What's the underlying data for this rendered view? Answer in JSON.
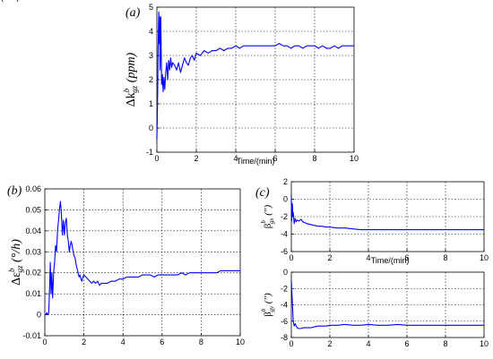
{
  "chart_data": [
    {
      "type": "line",
      "panel": "(a)",
      "ylabel_main": "Δk",
      "ylabel_sub": "gz",
      "ylabel_sup": "b",
      "ylabel_unit": " (ppm)",
      "xlabel": "Time/(min)",
      "xlim": [
        0,
        10
      ],
      "ylim": [
        -1,
        5
      ],
      "xticks": [
        "0",
        "2",
        "4",
        "6",
        "8",
        "10"
      ],
      "yticks": [
        "-1",
        "0",
        "1",
        "2",
        "3",
        "4",
        "5"
      ],
      "grid": true,
      "series": [
        {
          "color": "#0000ff",
          "x": [
            0,
            0.02,
            0.04,
            0.06,
            0.08,
            0.1,
            0.12,
            0.14,
            0.16,
            0.18,
            0.2,
            0.24,
            0.28,
            0.32,
            0.36,
            0.4,
            0.45,
            0.5,
            0.55,
            0.6,
            0.65,
            0.7,
            0.75,
            0.8,
            0.9,
            1.0,
            1.1,
            1.2,
            1.3,
            1.4,
            1.5,
            1.6,
            1.7,
            1.8,
            1.9,
            2.0,
            2.2,
            2.4,
            2.6,
            2.8,
            3.0,
            3.2,
            3.4,
            3.6,
            3.8,
            4.0,
            4.2,
            4.4,
            4.6,
            4.8,
            5.0,
            5.2,
            5.4,
            5.6,
            5.8,
            6.0,
            6.2,
            6.4,
            6.6,
            6.8,
            7.0,
            7.2,
            7.4,
            7.6,
            7.8,
            8.0,
            8.2,
            8.4,
            8.6,
            8.8,
            9.0,
            9.2,
            9.4,
            9.6,
            9.8,
            10.0
          ],
          "y": [
            -0.5,
            0.3,
            1.5,
            3.0,
            4.2,
            4.8,
            3.5,
            4.6,
            2.4,
            3.2,
            4.6,
            1.8,
            2.2,
            1.5,
            2.1,
            1.6,
            2.3,
            2.7,
            2.0,
            2.8,
            2.4,
            2.9,
            2.5,
            2.7,
            2.6,
            2.4,
            2.7,
            2.3,
            2.6,
            2.9,
            2.7,
            2.6,
            2.9,
            3.0,
            2.8,
            3.1,
            3.0,
            3.2,
            3.1,
            3.2,
            3.2,
            3.3,
            3.2,
            3.3,
            3.3,
            3.4,
            3.3,
            3.4,
            3.4,
            3.4,
            3.4,
            3.4,
            3.4,
            3.4,
            3.4,
            3.4,
            3.5,
            3.4,
            3.4,
            3.3,
            3.4,
            3.4,
            3.3,
            3.4,
            3.4,
            3.4,
            3.3,
            3.4,
            3.3,
            3.3,
            3.4,
            3.3,
            3.4,
            3.4,
            3.4,
            3.4
          ]
        }
      ]
    },
    {
      "type": "line",
      "panel": "(b)",
      "ylabel_main": "Δε",
      "ylabel_sub": "gz",
      "ylabel_sup": "b",
      "ylabel_unit": " (°/h)",
      "xlabel": "",
      "xlim": [
        0,
        10
      ],
      "ylim": [
        -0.01,
        0.06
      ],
      "xticks": [
        "0",
        "2",
        "4",
        "6",
        "8",
        "10"
      ],
      "yticks": [
        "-0.01",
        "0",
        "0.01",
        "0.02",
        "0.03",
        "0.04",
        "0.05",
        "0.06"
      ],
      "grid": true,
      "series": [
        {
          "color": "#0000ff",
          "x": [
            0,
            0.05,
            0.1,
            0.15,
            0.2,
            0.25,
            0.28,
            0.32,
            0.36,
            0.4,
            0.45,
            0.5,
            0.55,
            0.6,
            0.65,
            0.7,
            0.75,
            0.8,
            0.85,
            0.9,
            0.95,
            1.0,
            1.05,
            1.1,
            1.15,
            1.2,
            1.25,
            1.3,
            1.35,
            1.4,
            1.45,
            1.5,
            1.55,
            1.6,
            1.65,
            1.7,
            1.75,
            1.8,
            1.85,
            1.9,
            1.95,
            2.0,
            2.1,
            2.2,
            2.3,
            2.4,
            2.5,
            2.6,
            2.7,
            2.8,
            2.9,
            3.0,
            3.2,
            3.4,
            3.6,
            3.8,
            4.0,
            4.2,
            4.4,
            4.6,
            4.8,
            5.0,
            5.2,
            5.4,
            5.6,
            5.8,
            6.0,
            6.2,
            6.4,
            6.6,
            6.8,
            7.0,
            7.2,
            7.4,
            7.6,
            7.8,
            8.0,
            8.2,
            8.4,
            8.6,
            8.8,
            9.0,
            9.2,
            9.4,
            9.6,
            9.8,
            10.0
          ],
          "y": [
            0,
            0,
            0.001,
            0,
            0.001,
            0.015,
            0.025,
            0.01,
            0.02,
            0.008,
            0.02,
            0.025,
            0.033,
            0.03,
            0.04,
            0.045,
            0.05,
            0.054,
            0.048,
            0.038,
            0.045,
            0.038,
            0.044,
            0.046,
            0.038,
            0.035,
            0.03,
            0.033,
            0.035,
            0.033,
            0.03,
            0.028,
            0.027,
            0.024,
            0.022,
            0.02,
            0.018,
            0.019,
            0.017,
            0.016,
            0.018,
            0.019,
            0.018,
            0.017,
            0.016,
            0.015,
            0.016,
            0.015,
            0.016,
            0.014,
            0.015,
            0.015,
            0.015,
            0.016,
            0.016,
            0.017,
            0.017,
            0.018,
            0.018,
            0.018,
            0.018,
            0.019,
            0.019,
            0.019,
            0.018,
            0.019,
            0.019,
            0.019,
            0.019,
            0.019,
            0.019,
            0.02,
            0.019,
            0.02,
            0.02,
            0.02,
            0.02,
            0.02,
            0.02,
            0.02,
            0.02,
            0.021,
            0.021,
            0.021,
            0.021,
            0.021,
            0.021
          ]
        }
      ]
    },
    {
      "type": "line",
      "panel": "(c)",
      "ylabel_main": "β",
      "ylabel_sub": "gx",
      "ylabel_sup": "b",
      "ylabel_unit": " (\")",
      "xlabel": "Time/(min)",
      "xlim": [
        0,
        10
      ],
      "ylim": [
        -6,
        2
      ],
      "xticks": [
        "0",
        "2",
        "4",
        "6",
        "8",
        "10"
      ],
      "yticks": [
        "-6",
        "-4",
        "-2",
        "0",
        "2"
      ],
      "grid": true,
      "series": [
        {
          "color": "#0000ff",
          "x": [
            0,
            0.02,
            0.05,
            0.08,
            0.1,
            0.15,
            0.2,
            0.25,
            0.3,
            0.4,
            0.5,
            0.6,
            0.8,
            1.0,
            1.2,
            1.4,
            1.6,
            1.8,
            2.0,
            2.4,
            2.8,
            3.2,
            3.6,
            4.0,
            4.5,
            5.0,
            5.5,
            6.0,
            6.5,
            7.0,
            7.5,
            8.0,
            8.5,
            9.0,
            9.5,
            10.0
          ],
          "y": [
            0.5,
            -2.5,
            -0.5,
            -2.0,
            -1.5,
            -2.8,
            -2.2,
            -2.6,
            -2.4,
            -2.5,
            -2.3,
            -2.6,
            -2.8,
            -2.9,
            -3.0,
            -3.1,
            -3.1,
            -3.2,
            -3.2,
            -3.3,
            -3.3,
            -3.4,
            -3.5,
            -3.5,
            -3.5,
            -3.5,
            -3.5,
            -3.5,
            -3.5,
            -3.5,
            -3.5,
            -3.5,
            -3.5,
            -3.5,
            -3.5,
            -3.5
          ]
        }
      ]
    },
    {
      "type": "line",
      "panel": "",
      "ylabel_main": "β",
      "ylabel_sub": "gy",
      "ylabel_sup": "b",
      "ylabel_unit": " (\")",
      "xlabel": "Time/(min)",
      "xlim": [
        0,
        10
      ],
      "ylim": [
        -8,
        0
      ],
      "xticks": [
        "0",
        "2",
        "4",
        "6",
        "8",
        "10"
      ],
      "yticks": [
        "-8",
        "-6",
        "-4",
        "-2",
        "0"
      ],
      "grid": true,
      "series": [
        {
          "color": "#0000ff",
          "x": [
            0,
            0.02,
            0.05,
            0.08,
            0.1,
            0.15,
            0.2,
            0.3,
            0.4,
            0.5,
            0.6,
            0.8,
            1.0,
            1.2,
            1.4,
            1.6,
            1.8,
            2.0,
            2.4,
            2.8,
            3.2,
            3.6,
            4.0,
            4.5,
            5.0,
            5.5,
            6.0,
            6.5,
            7.0,
            7.5,
            8.0,
            8.5,
            9.0,
            9.5,
            10.0
          ],
          "y": [
            -1.0,
            -2.0,
            -3.5,
            -5.0,
            -6.0,
            -6.6,
            -6.3,
            -6.8,
            -6.9,
            -6.9,
            -6.8,
            -6.8,
            -6.8,
            -6.7,
            -6.6,
            -6.6,
            -6.6,
            -6.5,
            -6.5,
            -6.4,
            -6.5,
            -6.5,
            -6.4,
            -6.5,
            -6.5,
            -6.4,
            -6.5,
            -6.5,
            -6.5,
            -6.5,
            -6.5,
            -6.5,
            -6.5,
            -6.5,
            -6.5
          ]
        }
      ]
    }
  ]
}
